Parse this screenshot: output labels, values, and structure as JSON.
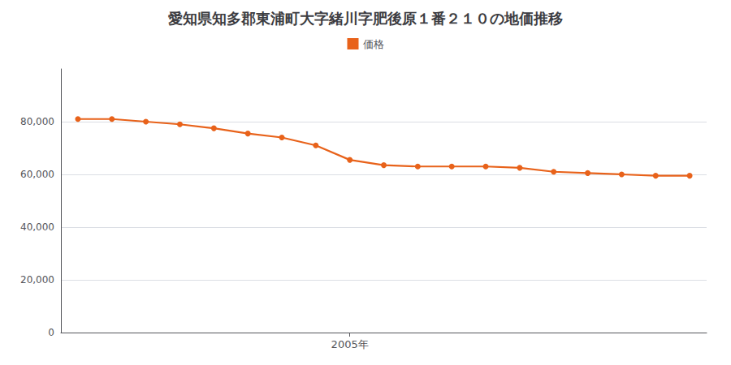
{
  "chart_data": {
    "type": "line",
    "title": "愛知県知多郡東浦町大字緒川字肥後原１番２１０の地価推移",
    "x": [
      1997,
      1998,
      1999,
      2000,
      2001,
      2002,
      2003,
      2004,
      2005,
      2006,
      2007,
      2008,
      2009,
      2010,
      2011,
      2012,
      2013,
      2014,
      2015
    ],
    "series": [
      {
        "name": "価格",
        "color": "#E8621A",
        "marker": "circle",
        "values": [
          81000,
          81000,
          80000,
          79000,
          77500,
          75500,
          74000,
          71000,
          65500,
          63500,
          63000,
          63000,
          63000,
          62500,
          61000,
          60500,
          60000,
          59500,
          59500
        ]
      }
    ],
    "xlim": [
      1996.5,
      2015.5
    ],
    "xticks": [
      {
        "value": 2005,
        "label": "2005年"
      }
    ],
    "ylim": [
      0,
      100000
    ],
    "yticks": [
      0,
      {
        "value": 20000,
        "label": "20,000"
      },
      {
        "value": 40000,
        "label": "40,000"
      },
      {
        "value": 60000,
        "label": "60,000"
      },
      {
        "value": 80000,
        "label": "80,000"
      }
    ],
    "grid": true,
    "legend": "top"
  }
}
